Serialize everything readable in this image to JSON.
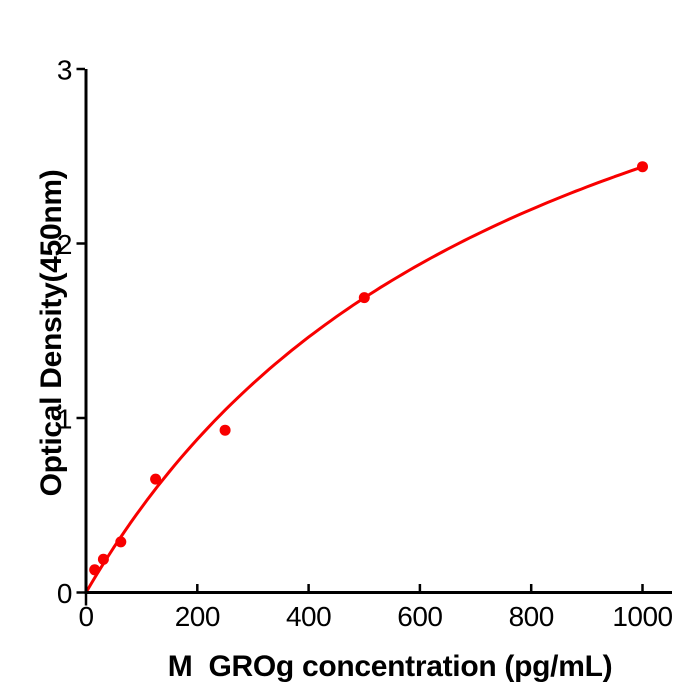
{
  "chart_data": {
    "type": "scatter",
    "title": "",
    "xlabel": "M  GROg concentration (pg/mL)",
    "ylabel": "Optical Density(450nm)",
    "x": [
      15.6,
      31.25,
      62.5,
      125,
      250,
      500,
      1000
    ],
    "y": [
      0.13,
      0.19,
      0.29,
      0.65,
      0.93,
      1.69,
      2.44
    ],
    "xticks": [
      0,
      200,
      400,
      600,
      800,
      1000
    ],
    "yticks": [
      0,
      1,
      2,
      3
    ],
    "xlim": [
      0,
      1055
    ],
    "ylim": [
      0,
      3
    ],
    "grid": false,
    "legend": null,
    "point_color": "#f80000",
    "curve_color": "#f80000",
    "axis_color": "#000000",
    "background_color": "#ffffff",
    "trendline": {
      "type": "saturation-fit",
      "formula": "y = a*x/(b+x)",
      "a": 4.39,
      "b": 800,
      "x_start": 0,
      "x_end": 1000
    }
  }
}
